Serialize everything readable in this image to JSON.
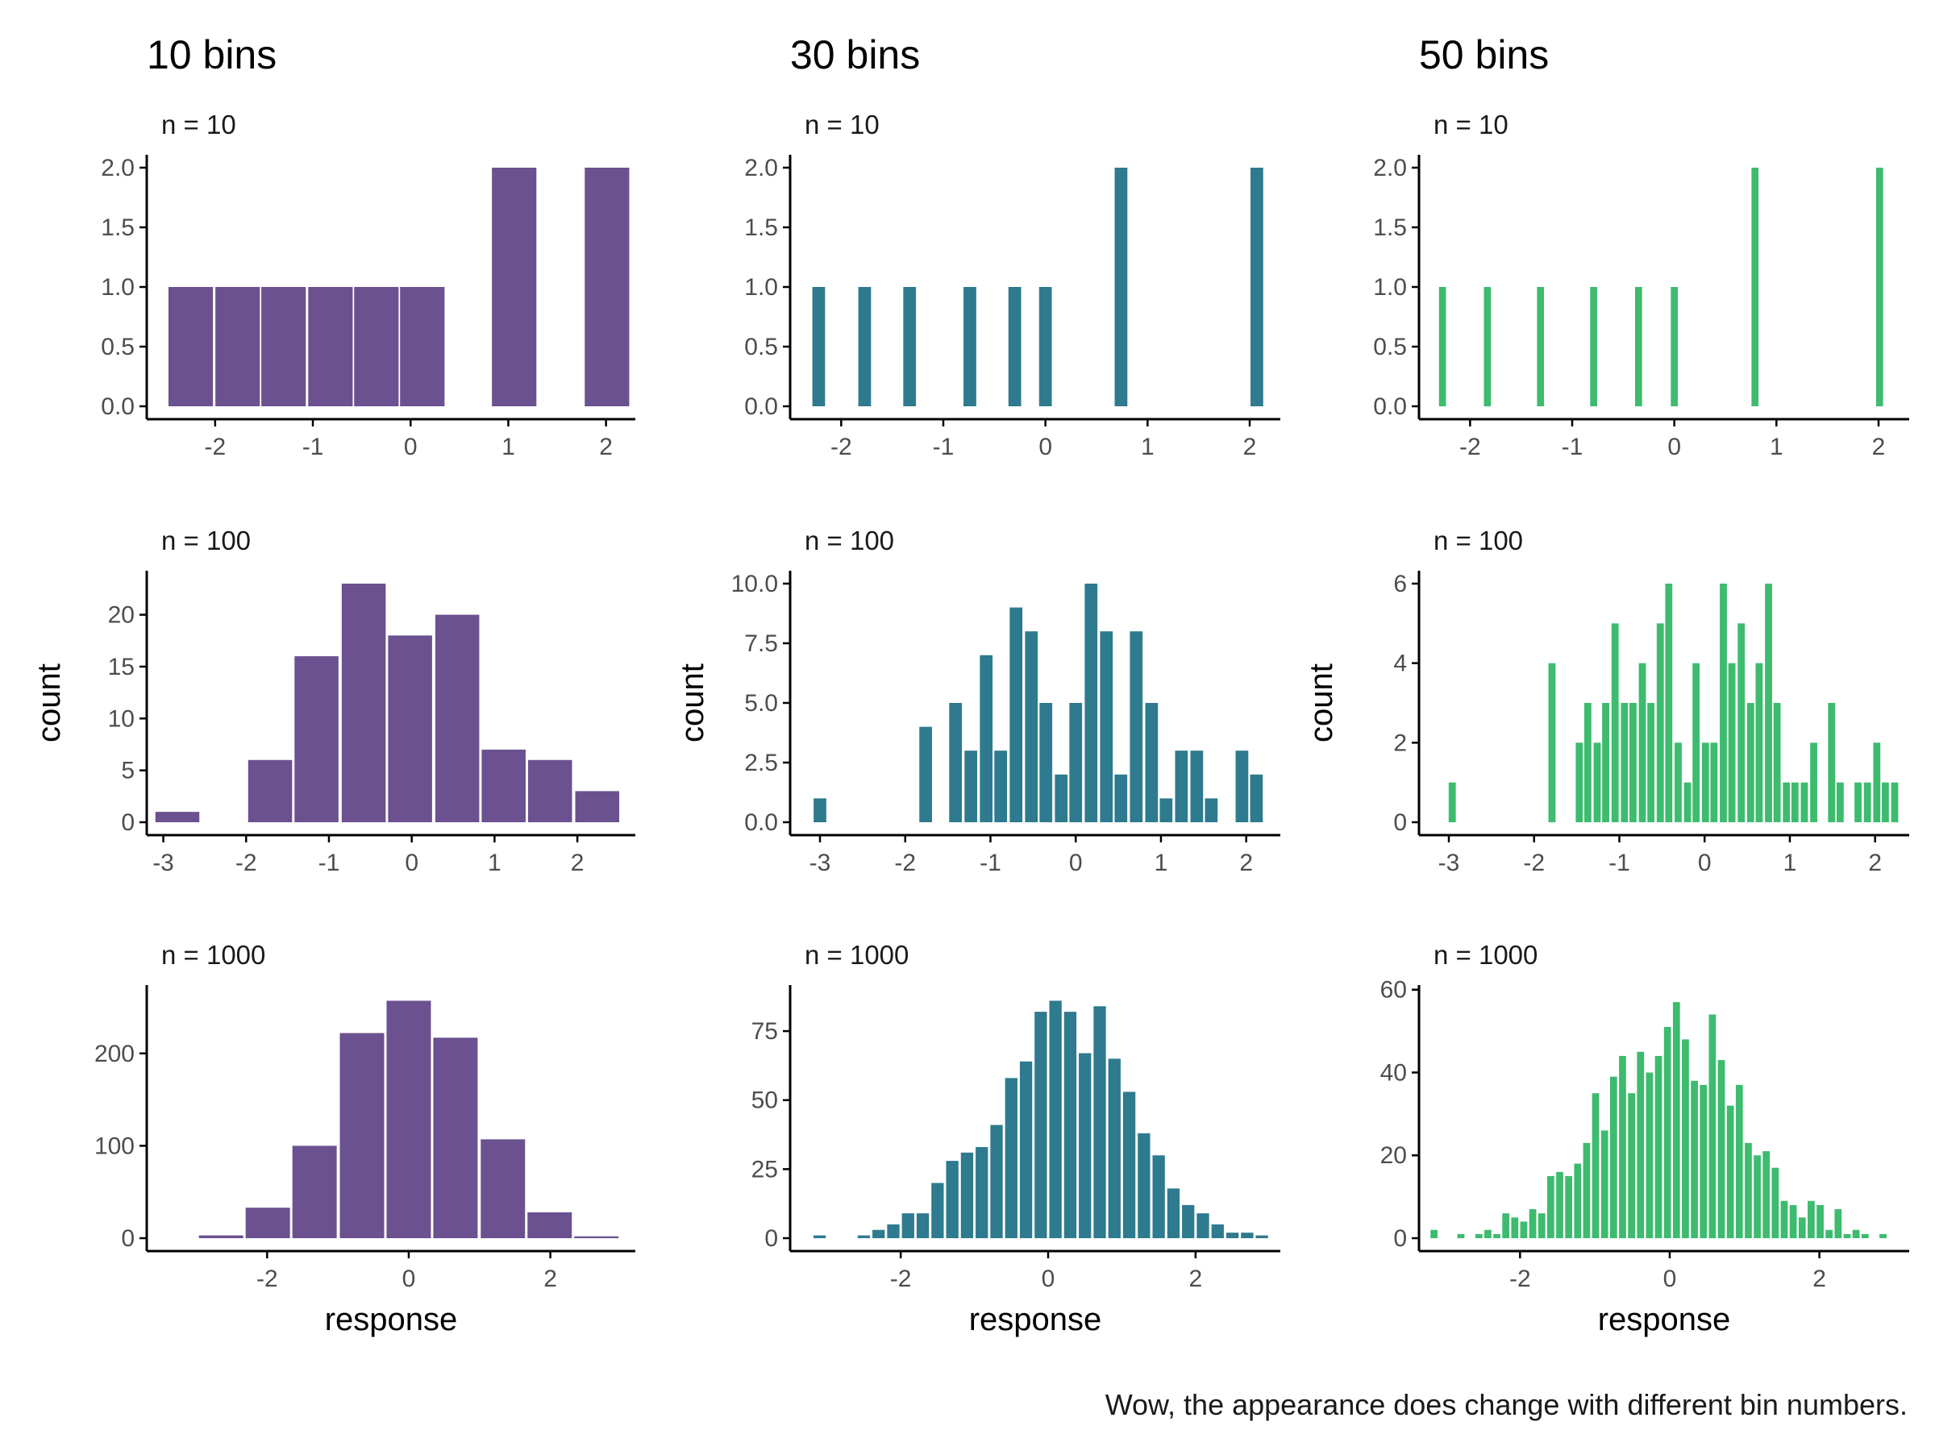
{
  "caption": "Wow, the appearance does change with different bin numbers.",
  "colors": {
    "10 bins": "#6B518F",
    "30 bins": "#2E7A8E",
    "50 bins": "#3DBB6E",
    "axis": "#000000",
    "tick_label": "#4d4d4d"
  },
  "column_titles": [
    "10 bins",
    "30 bins",
    "50 bins"
  ],
  "row_subtitles": [
    "n = 10",
    "n = 100",
    "n = 1000"
  ],
  "chart_data": [
    {
      "type": "bar",
      "title": "10 bins",
      "subtitle": "n = 10",
      "xlabel": "",
      "ylabel": "",
      "xlim": [
        -2.7,
        2.3
      ],
      "ylim": [
        0,
        2
      ],
      "x_ticks": [
        -2,
        -1,
        0,
        1,
        2
      ],
      "y_ticks": [
        0,
        0.5,
        1,
        1.5,
        2
      ],
      "y_tick_labels": [
        "0.0",
        "0.5",
        "1.0",
        "1.5",
        "2.0"
      ],
      "grid": false,
      "bin_width": 0.48,
      "bins": [
        {
          "x": -2.25,
          "count": 1
        },
        {
          "x": -1.77,
          "count": 1
        },
        {
          "x": -1.3,
          "count": 1
        },
        {
          "x": -0.82,
          "count": 1
        },
        {
          "x": -0.35,
          "count": 1
        },
        {
          "x": 0.12,
          "count": 1
        },
        {
          "x": 0.59,
          "count": 0
        },
        {
          "x": 1.06,
          "count": 2
        },
        {
          "x": 1.54,
          "count": 0
        },
        {
          "x": 2.01,
          "count": 2
        }
      ]
    },
    {
      "type": "bar",
      "title": "30 bins",
      "subtitle": "n = 10",
      "xlabel": "",
      "ylabel": "",
      "xlim": [
        -2.5,
        2.3
      ],
      "ylim": [
        0,
        2
      ],
      "x_ticks": [
        -2,
        -1,
        0,
        1,
        2
      ],
      "y_ticks": [
        0,
        0.5,
        1,
        1.5,
        2
      ],
      "y_tick_labels": [
        "0.0",
        "0.5",
        "1.0",
        "1.5",
        "2.0"
      ],
      "grid": false,
      "bin_width": 0.148,
      "bins": [
        {
          "x": -2.22,
          "count": 1
        },
        {
          "x": -1.77,
          "count": 1
        },
        {
          "x": -1.33,
          "count": 1
        },
        {
          "x": -0.74,
          "count": 1
        },
        {
          "x": -0.3,
          "count": 1
        },
        {
          "x": 0.0,
          "count": 1
        },
        {
          "x": 0.74,
          "count": 2
        },
        {
          "x": 2.07,
          "count": 2
        }
      ]
    },
    {
      "type": "bar",
      "title": "50 bins",
      "subtitle": "n = 10",
      "xlabel": "",
      "ylabel": "",
      "xlim": [
        -2.5,
        2.3
      ],
      "ylim": [
        0,
        2
      ],
      "x_ticks": [
        -2,
        -1,
        0,
        1,
        2
      ],
      "y_ticks": [
        0,
        0.5,
        1,
        1.5,
        2
      ],
      "y_tick_labels": [
        "0.0",
        "0.5",
        "1.0",
        "1.5",
        "2.0"
      ],
      "grid": false,
      "bin_width": 0.0875,
      "bins": [
        {
          "x": -2.27,
          "count": 1
        },
        {
          "x": -1.83,
          "count": 1
        },
        {
          "x": -1.31,
          "count": 1
        },
        {
          "x": -0.79,
          "count": 1
        },
        {
          "x": -0.35,
          "count": 1
        },
        {
          "x": 0.0,
          "count": 1
        },
        {
          "x": 0.79,
          "count": 2
        },
        {
          "x": 2.01,
          "count": 2
        }
      ]
    },
    {
      "type": "bar",
      "title": "10 bins",
      "subtitle": "n = 100",
      "xlabel": "",
      "ylabel": "count",
      "xlim": [
        -3.2,
        2.7
      ],
      "ylim": [
        0,
        23
      ],
      "x_ticks": [
        -3,
        -2,
        -1,
        0,
        1,
        2
      ],
      "y_ticks": [
        0,
        5,
        10,
        15,
        20
      ],
      "y_tick_labels": [
        "0",
        "5",
        "10",
        "15",
        "20"
      ],
      "grid": false,
      "bin_width": 0.56,
      "bins": [
        {
          "x": -2.83,
          "count": 1
        },
        {
          "x": -2.27,
          "count": 0
        },
        {
          "x": -1.71,
          "count": 6
        },
        {
          "x": -1.15,
          "count": 16
        },
        {
          "x": -0.58,
          "count": 23
        },
        {
          "x": -0.02,
          "count": 18
        },
        {
          "x": 0.55,
          "count": 20
        },
        {
          "x": 1.11,
          "count": 7
        },
        {
          "x": 1.67,
          "count": 6
        },
        {
          "x": 2.24,
          "count": 3
        }
      ]
    },
    {
      "type": "bar",
      "title": "30 bins",
      "subtitle": "n = 100",
      "xlabel": "",
      "ylabel": "count",
      "xlim": [
        -3.35,
        2.4
      ],
      "ylim": [
        0,
        10
      ],
      "x_ticks": [
        -3,
        -2,
        -1,
        0,
        1,
        2
      ],
      "y_ticks": [
        0,
        2.5,
        5,
        7.5,
        10
      ],
      "y_tick_labels": [
        "0.0",
        "2.5",
        "5.0",
        "7.5",
        "10.0"
      ],
      "grid": false,
      "bin_width": 0.177,
      "bins": [
        {
          "x": -3.0,
          "count": 1
        },
        {
          "x": -1.76,
          "count": 4
        },
        {
          "x": -1.41,
          "count": 5
        },
        {
          "x": -1.23,
          "count": 3
        },
        {
          "x": -1.05,
          "count": 7
        },
        {
          "x": -0.88,
          "count": 3
        },
        {
          "x": -0.7,
          "count": 9
        },
        {
          "x": -0.52,
          "count": 8
        },
        {
          "x": -0.35,
          "count": 5
        },
        {
          "x": -0.17,
          "count": 2
        },
        {
          "x": 0.0,
          "count": 5
        },
        {
          "x": 0.18,
          "count": 10
        },
        {
          "x": 0.36,
          "count": 8
        },
        {
          "x": 0.53,
          "count": 2
        },
        {
          "x": 0.71,
          "count": 8
        },
        {
          "x": 0.89,
          "count": 5
        },
        {
          "x": 1.06,
          "count": 1
        },
        {
          "x": 1.24,
          "count": 3
        },
        {
          "x": 1.42,
          "count": 3
        },
        {
          "x": 1.59,
          "count": 1
        },
        {
          "x": 1.95,
          "count": 3
        },
        {
          "x": 2.12,
          "count": 2
        }
      ]
    },
    {
      "type": "bar",
      "title": "50 bins",
      "subtitle": "n = 100",
      "xlabel": "",
      "ylabel": "count",
      "xlim": [
        -3.35,
        2.4
      ],
      "ylim": [
        0,
        6
      ],
      "x_ticks": [
        -3,
        -2,
        -1,
        0,
        1,
        2
      ],
      "y_ticks": [
        0,
        2,
        4,
        6
      ],
      "y_tick_labels": [
        "0",
        "2",
        "4",
        "6"
      ],
      "grid": false,
      "bin_width": 0.106,
      "bins": [
        {
          "x": -2.96,
          "count": 1
        },
        {
          "x": -1.79,
          "count": 4
        },
        {
          "x": -1.47,
          "count": 2
        },
        {
          "x": -1.37,
          "count": 3
        },
        {
          "x": -1.26,
          "count": 2
        },
        {
          "x": -1.16,
          "count": 3
        },
        {
          "x": -1.05,
          "count": 5
        },
        {
          "x": -0.94,
          "count": 3
        },
        {
          "x": -0.84,
          "count": 3
        },
        {
          "x": -0.73,
          "count": 4
        },
        {
          "x": -0.63,
          "count": 3
        },
        {
          "x": -0.52,
          "count": 5
        },
        {
          "x": -0.42,
          "count": 6
        },
        {
          "x": -0.31,
          "count": 2
        },
        {
          "x": -0.2,
          "count": 1
        },
        {
          "x": -0.1,
          "count": 4
        },
        {
          "x": 0.01,
          "count": 2
        },
        {
          "x": 0.11,
          "count": 2
        },
        {
          "x": 0.22,
          "count": 6
        },
        {
          "x": 0.32,
          "count": 4
        },
        {
          "x": 0.43,
          "count": 5
        },
        {
          "x": 0.54,
          "count": 3
        },
        {
          "x": 0.64,
          "count": 4
        },
        {
          "x": 0.75,
          "count": 6
        },
        {
          "x": 0.85,
          "count": 3
        },
        {
          "x": 0.96,
          "count": 1
        },
        {
          "x": 1.06,
          "count": 1
        },
        {
          "x": 1.17,
          "count": 1
        },
        {
          "x": 1.28,
          "count": 2
        },
        {
          "x": 1.49,
          "count": 3
        },
        {
          "x": 1.59,
          "count": 1
        },
        {
          "x": 1.8,
          "count": 1
        },
        {
          "x": 1.91,
          "count": 1
        },
        {
          "x": 2.02,
          "count": 2
        },
        {
          "x": 2.12,
          "count": 1
        },
        {
          "x": 2.23,
          "count": 1
        }
      ]
    },
    {
      "type": "bar",
      "title": "10 bins",
      "subtitle": "n = 1000",
      "xlabel": "response",
      "ylabel": "",
      "xlim": [
        -3.7,
        3.2
      ],
      "ylim": [
        0,
        260
      ],
      "x_ticks": [
        -2,
        0,
        2
      ],
      "y_ticks": [
        0,
        100,
        200
      ],
      "y_tick_labels": [
        "0",
        "100",
        "200"
      ],
      "grid": false,
      "bin_width": 0.66,
      "bins": [
        {
          "x": -2.65,
          "count": 3
        },
        {
          "x": -1.99,
          "count": 33
        },
        {
          "x": -1.33,
          "count": 100
        },
        {
          "x": -0.66,
          "count": 222
        },
        {
          "x": 0.0,
          "count": 257
        },
        {
          "x": 0.66,
          "count": 217
        },
        {
          "x": 1.33,
          "count": 107
        },
        {
          "x": 1.99,
          "count": 28
        },
        {
          "x": 2.65,
          "count": 2
        }
      ]
    },
    {
      "type": "bar",
      "title": "30 bins",
      "subtitle": "n = 1000",
      "xlabel": "response",
      "ylabel": "",
      "xlim": [
        -3.5,
        3.15
      ],
      "ylim": [
        0,
        87
      ],
      "x_ticks": [
        -2,
        0,
        2
      ],
      "y_ticks": [
        0,
        25,
        50,
        75
      ],
      "y_tick_labels": [
        "0",
        "25",
        "50",
        "75"
      ],
      "grid": false,
      "bin_width": 0.2,
      "bins": [
        {
          "x": -3.1,
          "count": 1
        },
        {
          "x": -2.5,
          "count": 1
        },
        {
          "x": -2.3,
          "count": 3
        },
        {
          "x": -2.1,
          "count": 5
        },
        {
          "x": -1.9,
          "count": 9
        },
        {
          "x": -1.7,
          "count": 9
        },
        {
          "x": -1.5,
          "count": 20
        },
        {
          "x": -1.3,
          "count": 28
        },
        {
          "x": -1.1,
          "count": 31
        },
        {
          "x": -0.9,
          "count": 33
        },
        {
          "x": -0.7,
          "count": 41
        },
        {
          "x": -0.5,
          "count": 58
        },
        {
          "x": -0.3,
          "count": 64
        },
        {
          "x": -0.1,
          "count": 82
        },
        {
          "x": 0.1,
          "count": 86
        },
        {
          "x": 0.3,
          "count": 82
        },
        {
          "x": 0.5,
          "count": 67
        },
        {
          "x": 0.7,
          "count": 84
        },
        {
          "x": 0.9,
          "count": 65
        },
        {
          "x": 1.1,
          "count": 53
        },
        {
          "x": 1.3,
          "count": 38
        },
        {
          "x": 1.5,
          "count": 30
        },
        {
          "x": 1.7,
          "count": 18
        },
        {
          "x": 1.9,
          "count": 12
        },
        {
          "x": 2.1,
          "count": 9
        },
        {
          "x": 2.3,
          "count": 5
        },
        {
          "x": 2.5,
          "count": 2
        },
        {
          "x": 2.7,
          "count": 2
        },
        {
          "x": 2.9,
          "count": 1
        }
      ]
    },
    {
      "type": "bar",
      "title": "50 bins",
      "subtitle": "n = 1000",
      "xlabel": "response",
      "ylabel": "",
      "xlim": [
        -3.35,
        3.2
      ],
      "ylim": [
        0,
        58
      ],
      "x_ticks": [
        -2,
        0,
        2
      ],
      "y_ticks": [
        0,
        20,
        40,
        60
      ],
      "y_tick_labels": [
        "0",
        "20",
        "40",
        "60"
      ],
      "grid": false,
      "bin_width": 0.12,
      "bins": [
        {
          "x": -3.15,
          "count": 2
        },
        {
          "x": -2.79,
          "count": 1
        },
        {
          "x": -2.55,
          "count": 1
        },
        {
          "x": -2.43,
          "count": 2
        },
        {
          "x": -2.31,
          "count": 1
        },
        {
          "x": -2.19,
          "count": 6
        },
        {
          "x": -2.07,
          "count": 5
        },
        {
          "x": -1.95,
          "count": 4
        },
        {
          "x": -1.83,
          "count": 7
        },
        {
          "x": -1.71,
          "count": 6
        },
        {
          "x": -1.59,
          "count": 15
        },
        {
          "x": -1.47,
          "count": 16
        },
        {
          "x": -1.35,
          "count": 15
        },
        {
          "x": -1.23,
          "count": 18
        },
        {
          "x": -1.11,
          "count": 23
        },
        {
          "x": -0.99,
          "count": 35
        },
        {
          "x": -0.87,
          "count": 26
        },
        {
          "x": -0.75,
          "count": 39
        },
        {
          "x": -0.63,
          "count": 44
        },
        {
          "x": -0.51,
          "count": 35
        },
        {
          "x": -0.39,
          "count": 45
        },
        {
          "x": -0.27,
          "count": 40
        },
        {
          "x": -0.15,
          "count": 44
        },
        {
          "x": -0.03,
          "count": 51
        },
        {
          "x": 0.09,
          "count": 57
        },
        {
          "x": 0.21,
          "count": 48
        },
        {
          "x": 0.33,
          "count": 38
        },
        {
          "x": 0.45,
          "count": 37
        },
        {
          "x": 0.57,
          "count": 54
        },
        {
          "x": 0.69,
          "count": 43
        },
        {
          "x": 0.81,
          "count": 32
        },
        {
          "x": 0.93,
          "count": 37
        },
        {
          "x": 1.05,
          "count": 23
        },
        {
          "x": 1.17,
          "count": 20
        },
        {
          "x": 1.29,
          "count": 21
        },
        {
          "x": 1.41,
          "count": 17
        },
        {
          "x": 1.53,
          "count": 9
        },
        {
          "x": 1.65,
          "count": 8
        },
        {
          "x": 1.77,
          "count": 5
        },
        {
          "x": 1.89,
          "count": 9
        },
        {
          "x": 2.01,
          "count": 8
        },
        {
          "x": 2.13,
          "count": 2
        },
        {
          "x": 2.25,
          "count": 7
        },
        {
          "x": 2.37,
          "count": 1
        },
        {
          "x": 2.49,
          "count": 2
        },
        {
          "x": 2.61,
          "count": 1
        },
        {
          "x": 2.85,
          "count": 1
        }
      ]
    }
  ]
}
